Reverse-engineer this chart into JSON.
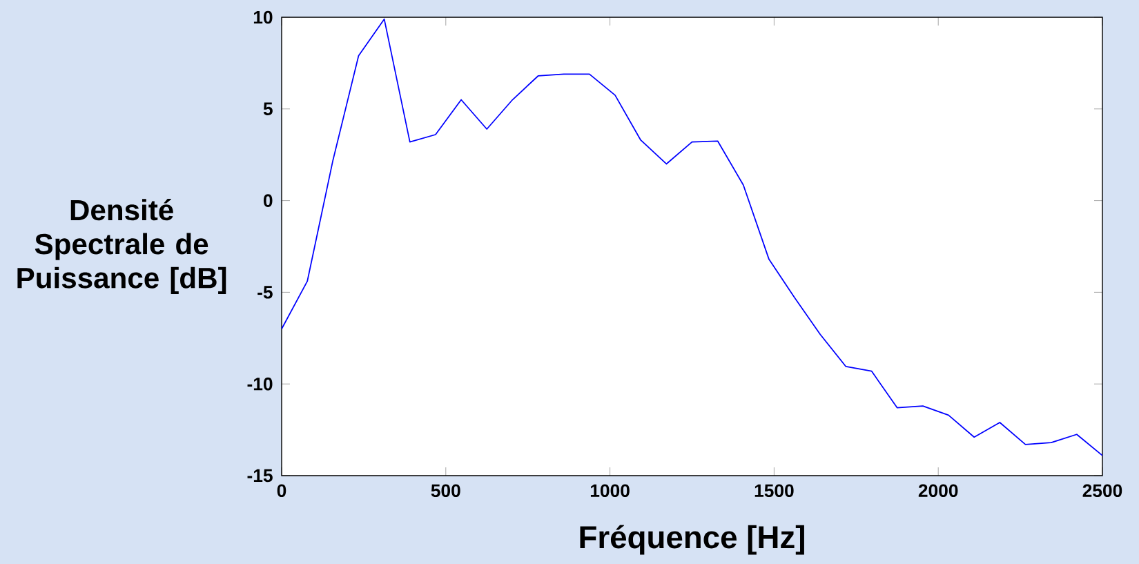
{
  "chart_data": {
    "type": "line",
    "xlabel": "Fréquence [Hz]",
    "ylabel": "Densité Spectrale de Puissance [dB]",
    "x": [
      0,
      78.125,
      156.25,
      234.375,
      312.5,
      390.625,
      468.75,
      546.875,
      625,
      703.125,
      781.25,
      859.375,
      937.5,
      1015.625,
      1093.75,
      1171.875,
      1250,
      1328.125,
      1406.25,
      1484.375,
      1562.5,
      1640.625,
      1718.75,
      1796.875,
      1875,
      1953.125,
      2031.25,
      2109.375,
      2187.5,
      2265.625,
      2343.75,
      2421.875,
      2500
    ],
    "values": [
      -7.0,
      -4.4,
      2.2,
      7.9,
      9.9,
      3.2,
      3.6,
      5.5,
      3.9,
      5.5,
      6.8,
      6.9,
      6.9,
      5.75,
      3.3,
      2.0,
      3.2,
      3.25,
      0.85,
      -3.2,
      -5.3,
      -7.3,
      -9.05,
      -9.3,
      -11.3,
      -11.2,
      -11.7,
      -12.9,
      -12.1,
      -13.3,
      -13.2,
      -12.75,
      -13.9
    ],
    "color": "#0000ff",
    "xlim": [
      0,
      2500
    ],
    "ylim": [
      -15,
      10
    ],
    "xticks": [
      0,
      500,
      1000,
      1500,
      2000,
      2500
    ],
    "yticks": [
      -15,
      -10,
      -5,
      0,
      5,
      10
    ]
  }
}
